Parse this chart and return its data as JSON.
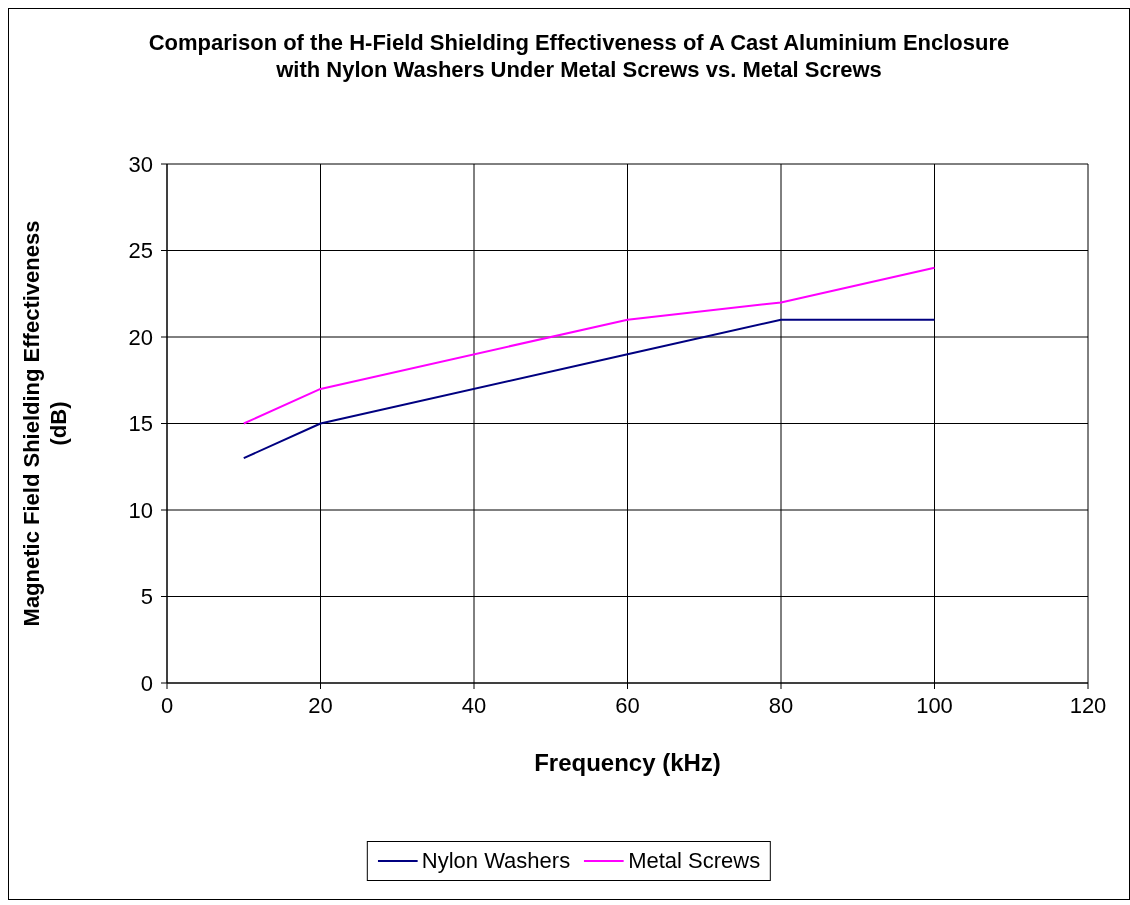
{
  "chart_data": {
    "type": "line",
    "title": "Comparison of the H-Field Shielding Effectiveness of A Cast Aluminium Enclosure with Nylon Washers Under Metal Screws vs. Metal Screws",
    "xlabel": "Frequency (kHz)",
    "ylabel": "Magnetic Field Shielding Effectiveness (dB)",
    "xlim": [
      0,
      120
    ],
    "xticks": [
      0,
      20,
      40,
      60,
      80,
      100,
      120
    ],
    "ylim": [
      0,
      30
    ],
    "yticks": [
      0,
      5,
      10,
      15,
      20,
      25,
      30
    ],
    "grid": true,
    "legend": "bottom",
    "series": [
      {
        "name": "Nylon Washers",
        "color": "#000080",
        "x": [
          10,
          20,
          60,
          80,
          100
        ],
        "values": [
          13,
          15,
          19,
          21,
          21
        ]
      },
      {
        "name": "Metal Screws",
        "color": "#ff00ff",
        "x": [
          10,
          20,
          60,
          80,
          100
        ],
        "values": [
          15,
          17,
          21,
          22,
          24
        ]
      }
    ]
  }
}
